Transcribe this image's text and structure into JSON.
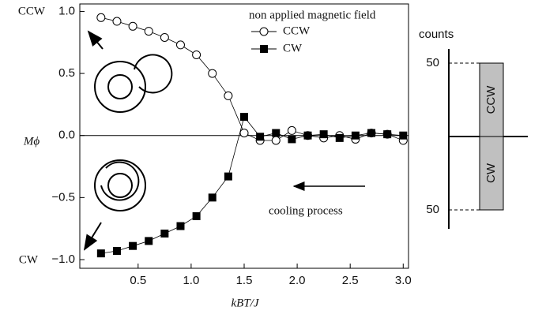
{
  "chart_data": [
    {
      "type": "scatter",
      "xlabel": "kBT/J",
      "ylabel": "Mϕ",
      "annotations": {
        "top": "CCW",
        "bottom": "CW",
        "process": "cooling process"
      },
      "legend_title": "non applied magnetic field",
      "xlim": [
        -0.05,
        3.05
      ],
      "ylim": [
        -1.07,
        1.06
      ],
      "xticks": [
        {
          "value": 0.5,
          "label": "0.5"
        },
        {
          "value": 1.0,
          "label": "1.0"
        },
        {
          "value": 1.5,
          "label": "1.5"
        },
        {
          "value": 2.0,
          "label": "2.0"
        },
        {
          "value": 2.5,
          "label": "2.5"
        },
        {
          "value": 3.0,
          "label": "3.0"
        }
      ],
      "yticks": [
        {
          "value": -1.0,
          "label": "−1.0"
        },
        {
          "value": -0.5,
          "label": "−0.5"
        },
        {
          "value": 0.0,
          "label": "0.0"
        },
        {
          "value": 0.5,
          "label": "0.5"
        },
        {
          "value": 1.0,
          "label": "1.0"
        }
      ],
      "x": [
        0.15,
        0.3,
        0.45,
        0.6,
        0.75,
        0.9,
        1.05,
        1.2,
        1.35,
        1.5,
        1.65,
        1.8,
        1.95,
        2.1,
        2.25,
        2.4,
        2.55,
        2.7,
        2.85,
        3.0
      ],
      "series": [
        {
          "name": "CCW",
          "marker": "circle",
          "color": "#000",
          "values": [
            0.95,
            0.92,
            0.88,
            0.84,
            0.79,
            0.73,
            0.65,
            0.5,
            0.32,
            0.02,
            -0.04,
            -0.04,
            0.04,
            0.0,
            -0.02,
            0.0,
            -0.03,
            0.02,
            0.01,
            -0.04
          ]
        },
        {
          "name": "CW",
          "marker": "square",
          "color": "#000",
          "values": [
            -0.95,
            -0.93,
            -0.89,
            -0.85,
            -0.79,
            -0.73,
            -0.65,
            -0.5,
            -0.33,
            0.15,
            -0.01,
            0.02,
            -0.03,
            0.0,
            0.01,
            -0.02,
            0.0,
            0.02,
            0.01,
            0.0
          ]
        }
      ]
    },
    {
      "type": "bar",
      "ylabel": "counts",
      "categories": [
        "CCW",
        "CW"
      ],
      "values": [
        50,
        50
      ],
      "ylim": [
        0,
        50
      ],
      "yticks": [
        50
      ],
      "color": "#c0c0c0"
    }
  ]
}
